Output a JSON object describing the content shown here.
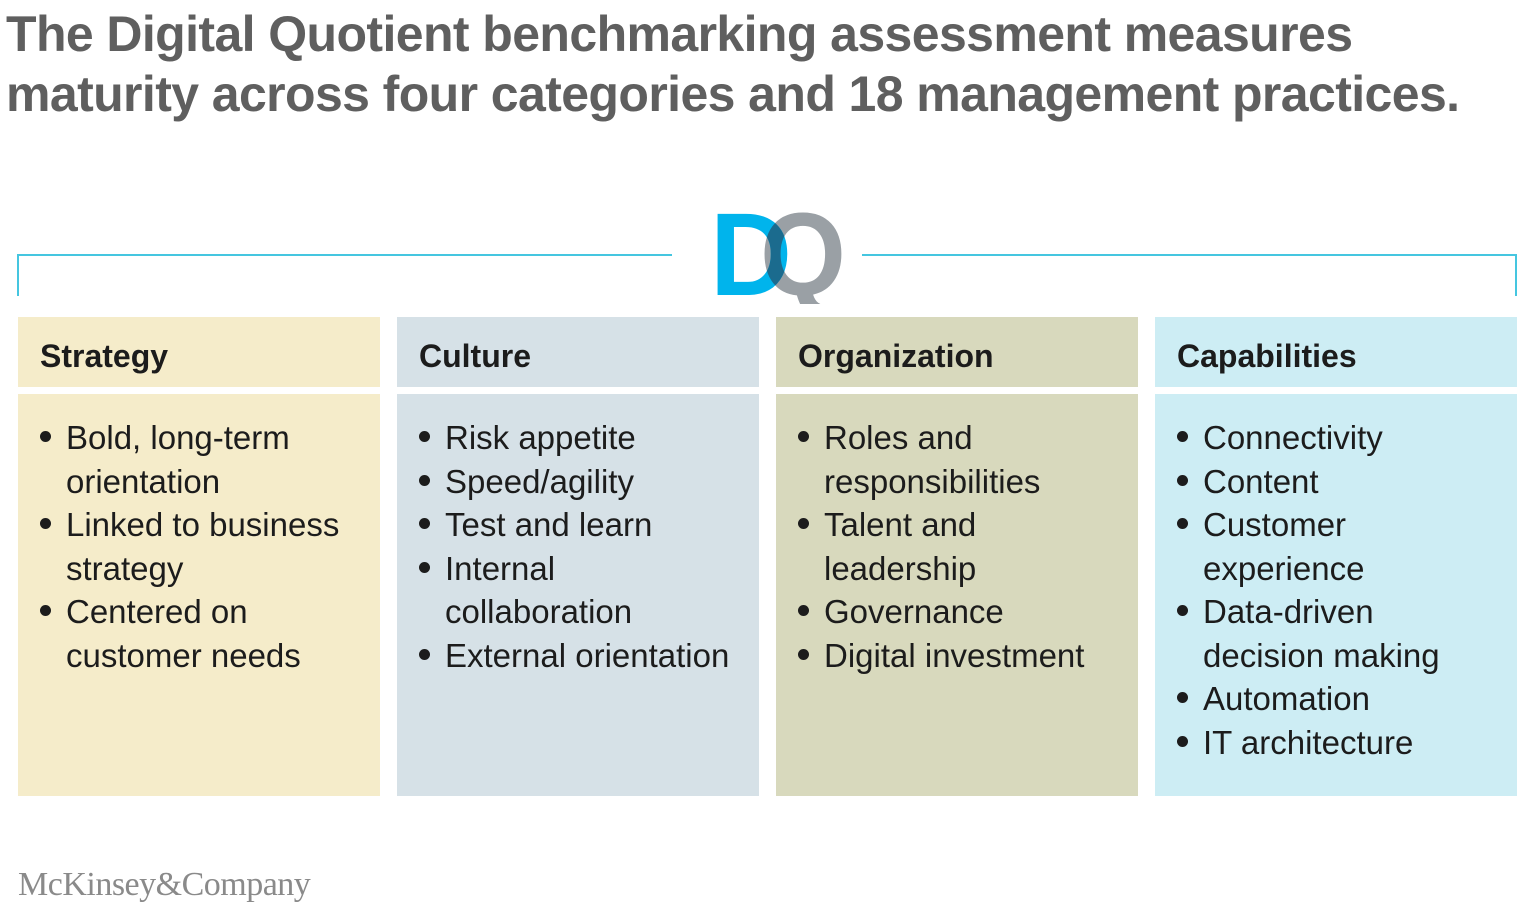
{
  "title": "The Digital Quotient benchmarking assessment measures maturity across four categories and 18 management practices.",
  "logo": {
    "letter_d": "D",
    "letter_q": "Q"
  },
  "colors": {
    "bracket": "#45c6e0",
    "logo_d": "#00b4ec",
    "logo_q": "#9aa0a5",
    "logo_overlap": "#1b6b8e"
  },
  "categories": [
    {
      "name": "Strategy",
      "head_color": "#f5ecca",
      "body_color": "#f5ecca",
      "items": [
        "Bold, long-term\norientation",
        "Linked to business\nstrategy",
        "Centered on\ncustomer needs"
      ]
    },
    {
      "name": "Culture",
      "head_color": "#d6e1e7",
      "body_color": "#d6e1e7",
      "items": [
        "Risk appetite",
        "Speed/agility",
        "Test and learn",
        "Internal\ncollaboration",
        "External orientation"
      ]
    },
    {
      "name": "Organization",
      "head_color": "#d8d9bd",
      "body_color": "#d8d9bd",
      "items": [
        "Roles and\nresponsibilities",
        "Talent and\nleadership",
        "Governance",
        "Digital investment"
      ]
    },
    {
      "name": "Capabilities",
      "head_color": "#cdedf4",
      "body_color": "#cdedf4",
      "items": [
        "Connectivity",
        "Content",
        "Customer\nexperience",
        "Data-driven\ndecision making",
        "Automation",
        "IT architecture"
      ]
    }
  ],
  "footer": "McKinsey&Company"
}
